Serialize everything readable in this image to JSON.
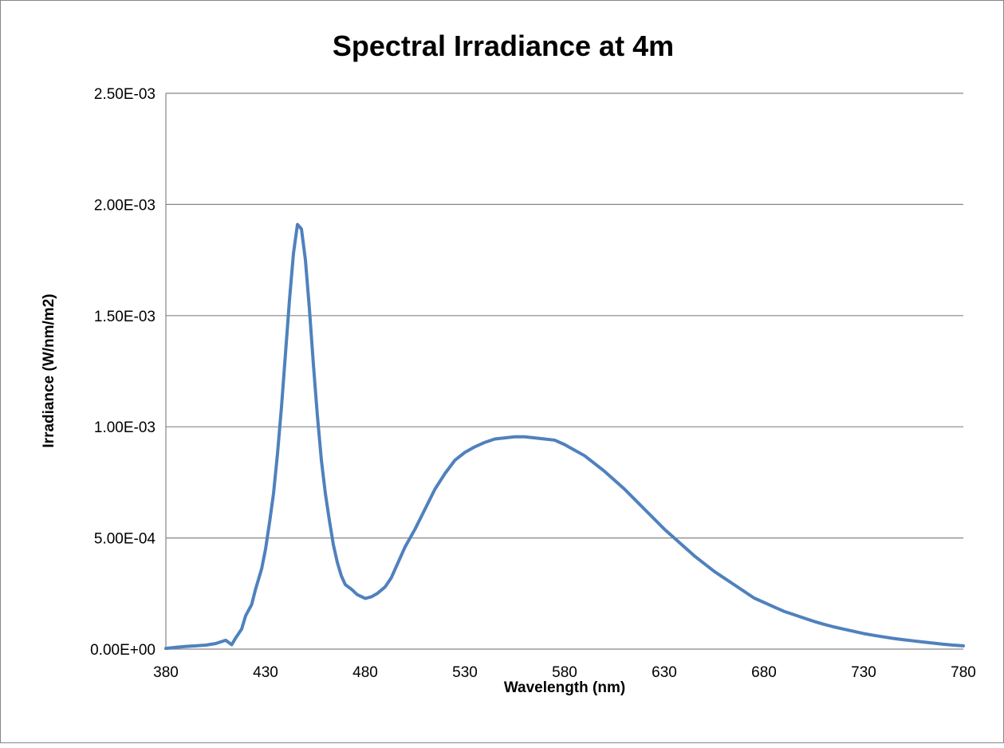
{
  "chart_data": {
    "type": "line",
    "title": "Spectral Irradiance at 4m",
    "xlabel": "Wavelength (nm)",
    "ylabel": "Irradiance (W/nm/m2)",
    "xlim": [
      380,
      780
    ],
    "ylim": [
      0,
      0.0025
    ],
    "x_ticks": [
      380,
      430,
      480,
      530,
      580,
      630,
      680,
      730,
      780
    ],
    "x_tick_labels": [
      "380",
      "430",
      "480",
      "530",
      "580",
      "630",
      "680",
      "730",
      "780"
    ],
    "y_ticks": [
      0,
      0.0005,
      0.001,
      0.0015,
      0.002,
      0.0025
    ],
    "y_tick_labels": [
      "0.00E+00",
      "5.00E-04",
      "1.00E-03",
      "1.50E-03",
      "2.00E-03",
      "2.50E-03"
    ],
    "grid": "horizontal",
    "legend": "none",
    "series_color": "#4F81BD",
    "series": [
      {
        "x": [
          380,
          385,
          390,
          395,
          400,
          405,
          410,
          413,
          415,
          418,
          420,
          423,
          425,
          428,
          430,
          432,
          434,
          436,
          438,
          440,
          442,
          444,
          446,
          448,
          450,
          452,
          454,
          456,
          458,
          460,
          462,
          464,
          466,
          468,
          470,
          473,
          476,
          480,
          483,
          486,
          490,
          493,
          496,
          500,
          505,
          510,
          515,
          520,
          525,
          530,
          535,
          540,
          545,
          550,
          555,
          560,
          565,
          570,
          575,
          580,
          585,
          590,
          595,
          600,
          605,
          610,
          615,
          620,
          625,
          630,
          635,
          640,
          645,
          650,
          655,
          660,
          665,
          670,
          675,
          680,
          685,
          690,
          695,
          700,
          705,
          710,
          715,
          720,
          725,
          730,
          735,
          740,
          745,
          750,
          755,
          760,
          765,
          770,
          775,
          780
        ],
        "y": [
          3e-06,
          8e-06,
          1.2e-05,
          1.5e-05,
          1.8e-05,
          2.5e-05,
          4e-05,
          2e-05,
          5e-05,
          9e-05,
          0.00015,
          0.0002,
          0.00027,
          0.00036,
          0.00045,
          0.00057,
          0.0007,
          0.00088,
          0.00109,
          0.00133,
          0.00157,
          0.00178,
          0.00191,
          0.00189,
          0.00175,
          0.00153,
          0.00128,
          0.00105,
          0.00085,
          0.0007,
          0.00058,
          0.00047,
          0.00039,
          0.00033,
          0.00029,
          0.00027,
          0.000245,
          0.000228,
          0.000235,
          0.00025,
          0.00028,
          0.00032,
          0.00038,
          0.00046,
          0.00054,
          0.00063,
          0.00072,
          0.00079,
          0.00085,
          0.000885,
          0.00091,
          0.00093,
          0.000945,
          0.00095,
          0.000955,
          0.000955,
          0.00095,
          0.000945,
          0.00094,
          0.00092,
          0.000895,
          0.00087,
          0.000835,
          0.0008,
          0.00076,
          0.00072,
          0.000675,
          0.00063,
          0.000585,
          0.00054,
          0.0005,
          0.00046,
          0.00042,
          0.000385,
          0.00035,
          0.00032,
          0.00029,
          0.00026,
          0.00023,
          0.00021,
          0.00019,
          0.00017,
          0.000155,
          0.00014,
          0.000125,
          0.000112,
          0.0001,
          9e-05,
          8e-05,
          7e-05,
          6.2e-05,
          5.5e-05,
          4.8e-05,
          4.2e-05,
          3.7e-05,
          3.2e-05,
          2.7e-05,
          2.2e-05,
          1.8e-05,
          1.5e-05
        ]
      }
    ]
  }
}
